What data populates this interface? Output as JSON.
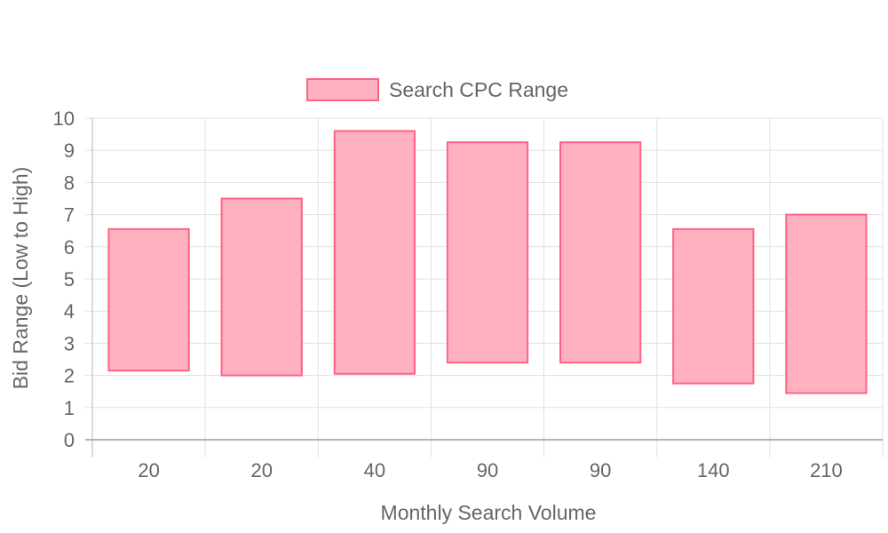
{
  "chart_data": {
    "type": "bar",
    "categories": [
      "20",
      "20",
      "40",
      "90",
      "90",
      "140",
      "210"
    ],
    "series": [
      {
        "name": "Search CPC Range",
        "values": [
          [
            2.15,
            6.55
          ],
          [
            2.0,
            7.5
          ],
          [
            2.05,
            9.6
          ],
          [
            2.4,
            9.25
          ],
          [
            2.4,
            9.25
          ],
          [
            1.75,
            6.55
          ],
          [
            1.45,
            7.0
          ]
        ]
      }
    ],
    "xlabel": "Monthly Search Volume",
    "ylabel": "Bid Range (Low to High)",
    "ylim": [
      0,
      10
    ],
    "yticks": [
      "0",
      "1",
      "2",
      "3",
      "4",
      "5",
      "6",
      "7",
      "8",
      "9",
      "10"
    ],
    "grid": true,
    "legend_position": "top-center",
    "colors": {
      "bar_fill": "#ffb1c1",
      "bar_border": "#ff6384",
      "grid": "#e1e1e1",
      "axis": "#b3b3b3",
      "text": "#666666"
    }
  }
}
